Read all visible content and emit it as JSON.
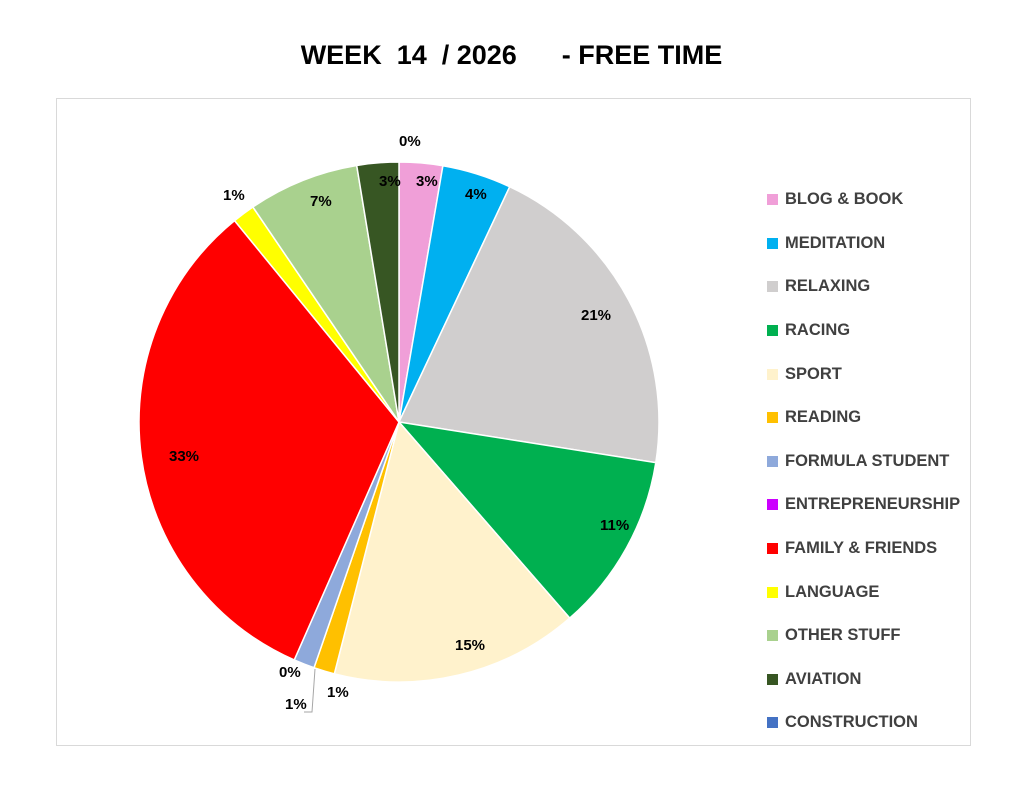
{
  "chart_data": {
    "type": "pie",
    "title": "WEEK  14  / 2026      - FREE TIME",
    "legend_position": "right",
    "slices": [
      {
        "name": "BLOG & BOOK",
        "value": 2.7,
        "label": "3%",
        "color": "#F09FD8"
      },
      {
        "name": "MEDITATION",
        "value": 4.3,
        "label": "4%",
        "color": "#00B0F0"
      },
      {
        "name": "RELAXING",
        "value": 20.5,
        "label": "21%",
        "color": "#D0CECE"
      },
      {
        "name": "RACING",
        "value": 11.1,
        "label": "11%",
        "color": "#00B050"
      },
      {
        "name": "SPORT",
        "value": 15.4,
        "label": "15%",
        "color": "#FFF2CC"
      },
      {
        "name": "READING",
        "value": 1.3,
        "label": "1%",
        "color": "#FFC000"
      },
      {
        "name": "FORMULA STUDENT",
        "value": 1.3,
        "label": "1%",
        "color": "#8EA9DB"
      },
      {
        "name": "ENTREPRENEURSHIP",
        "value": 0,
        "label": "0%",
        "color": "#CC00FF"
      },
      {
        "name": "FAMILY & FRIENDS",
        "value": 32.5,
        "label": "33%",
        "color": "#FF0000"
      },
      {
        "name": "LANGUAGE",
        "value": 1.4,
        "label": "1%",
        "color": "#FFFF00"
      },
      {
        "name": "OTHER STUFF",
        "value": 6.9,
        "label": "7%",
        "color": "#A9D18E"
      },
      {
        "name": "AVIATION",
        "value": 2.6,
        "label": "3%",
        "color": "#375623"
      },
      {
        "name": "CONSTRUCTION",
        "value": 0,
        "label": "0%",
        "color": "#4472C4"
      }
    ]
  }
}
